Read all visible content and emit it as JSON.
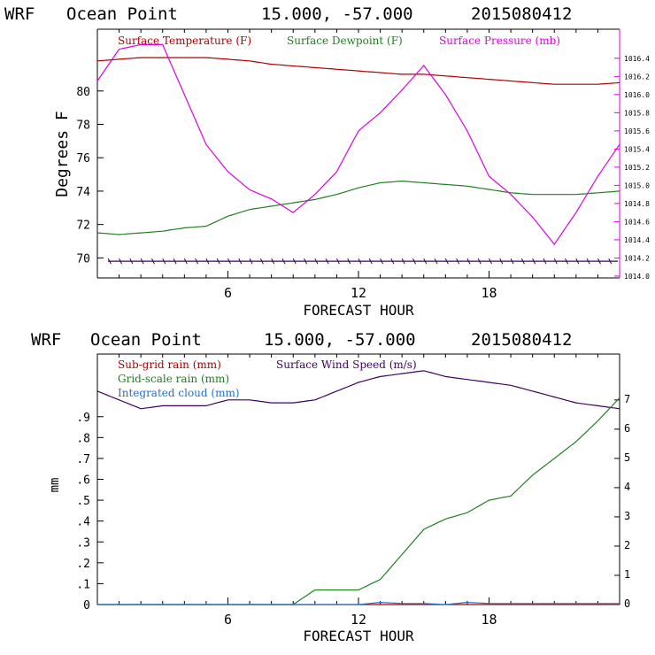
{
  "charts": [
    {
      "title": {
        "model": "WRF",
        "location": "Ocean Point",
        "coords": "15.000, -57.000",
        "run": "2015080412"
      },
      "xlabel": "FORECAST HOUR",
      "ylabel": "Degrees F",
      "legend": [
        {
          "label": "Surface Temperature (F)",
          "color": "#b00000"
        },
        {
          "label": "Surface Dewpoint (F)",
          "color": "#208020"
        },
        {
          "label": "Surface Pressure (mb)",
          "color": "#e000e0"
        }
      ],
      "xticks": [
        {
          "value": 6,
          "label": "6"
        },
        {
          "value": 12,
          "label": "12"
        },
        {
          "value": 18,
          "label": "18"
        }
      ],
      "yticks_left": [
        {
          "value": 70,
          "label": "70"
        },
        {
          "value": 72,
          "label": "72"
        },
        {
          "value": 74,
          "label": "74"
        },
        {
          "value": 76,
          "label": "76"
        },
        {
          "value": 78,
          "label": "78"
        },
        {
          "value": 80,
          "label": "80"
        }
      ],
      "yticks_right": [
        {
          "value": 1014.0,
          "label": "1014.0"
        },
        {
          "value": 1014.2,
          "label": "1014.2"
        },
        {
          "value": 1014.4,
          "label": "1014.4"
        },
        {
          "value": 1014.6,
          "label": "1014.6"
        },
        {
          "value": 1014.8,
          "label": "1014.8"
        },
        {
          "value": 1015.0,
          "label": "1015.0"
        },
        {
          "value": 1015.2,
          "label": "1015.2"
        },
        {
          "value": 1015.4,
          "label": "1015.4"
        },
        {
          "value": 1015.6,
          "label": "1015.6"
        },
        {
          "value": 1015.8,
          "label": "1015.8"
        },
        {
          "value": 1016.0,
          "label": "1016.0"
        },
        {
          "value": 1016.2,
          "label": "1016.2"
        },
        {
          "value": 1016.4,
          "label": "1016.4"
        }
      ]
    },
    {
      "title": {
        "model": "WRF",
        "location": "Ocean Point",
        "coords": "15.000, -57.000",
        "run": "2015080412"
      },
      "xlabel": "FORECAST HOUR",
      "ylabel": "mm",
      "legend": [
        {
          "label": "Sub-grid rain (mm)",
          "color": "#b00000"
        },
        {
          "label": "Surface Wind Speed (m/s)",
          "color": "#400060"
        },
        {
          "label": "Grid-scale rain (mm)",
          "color": "#208020"
        },
        {
          "label": "Integrated cloud (mm)",
          "color": "#2070d0"
        }
      ],
      "xticks": [
        {
          "value": 6,
          "label": "6"
        },
        {
          "value": 12,
          "label": "12"
        },
        {
          "value": 18,
          "label": "18"
        }
      ],
      "yticks_left": [
        {
          "value": 0,
          "label": "0"
        },
        {
          "value": 0.1,
          "label": ".1"
        },
        {
          "value": 0.2,
          "label": ".2"
        },
        {
          "value": 0.3,
          "label": ".3"
        },
        {
          "value": 0.4,
          "label": ".4"
        },
        {
          "value": 0.5,
          "label": ".5"
        },
        {
          "value": 0.6,
          "label": ".6"
        },
        {
          "value": 0.7,
          "label": ".7"
        },
        {
          "value": 0.8,
          "label": ".8"
        },
        {
          "value": 0.9,
          "label": ".9"
        }
      ],
      "yticks_right": [
        {
          "value": 0,
          "label": "0"
        },
        {
          "value": 1,
          "label": "1"
        },
        {
          "value": 2,
          "label": "2"
        },
        {
          "value": 3,
          "label": "3"
        },
        {
          "value": 4,
          "label": "4"
        },
        {
          "value": 5,
          "label": "5"
        },
        {
          "value": 6,
          "label": "6"
        },
        {
          "value": 7,
          "label": "7"
        }
      ]
    }
  ],
  "chart_data": [
    {
      "type": "line",
      "title": "WRF Ocean Point 15.000, -57.000 2015080412",
      "xlabel": "FORECAST HOUR",
      "ylabel": "Degrees F",
      "xlim": [
        0,
        24
      ],
      "ylim": [
        68.8,
        83.7
      ],
      "ylim_right": [
        1013.98,
        1016.72
      ],
      "x": [
        0,
        1,
        2,
        3,
        4,
        5,
        6,
        7,
        8,
        9,
        10,
        11,
        12,
        13,
        14,
        15,
        16,
        17,
        18,
        19,
        20,
        21,
        22,
        23,
        24
      ],
      "series": [
        {
          "name": "Surface Temperature (F)",
          "axis": "left",
          "color": "#b00000",
          "values": [
            81.8,
            81.9,
            82.0,
            82.0,
            82.0,
            82.0,
            81.9,
            81.8,
            81.6,
            81.5,
            81.4,
            81.3,
            81.2,
            81.1,
            81.0,
            81.0,
            80.9,
            80.8,
            80.7,
            80.6,
            80.5,
            80.4,
            80.4,
            80.4,
            80.5
          ]
        },
        {
          "name": "Surface Dewpoint (F)",
          "axis": "left",
          "color": "#208020",
          "values": [
            71.5,
            71.4,
            71.5,
            71.6,
            71.8,
            71.9,
            72.5,
            72.9,
            73.1,
            73.3,
            73.5,
            73.8,
            74.2,
            74.5,
            74.6,
            74.5,
            74.4,
            74.3,
            74.1,
            73.9,
            73.8,
            73.8,
            73.8,
            73.9,
            74.0
          ]
        },
        {
          "name": "Surface Pressure (mb)",
          "axis": "right",
          "color": "#e000e0",
          "values": [
            1016.15,
            1016.5,
            1016.55,
            1016.55,
            1016.0,
            1015.45,
            1015.15,
            1014.95,
            1014.85,
            1014.7,
            1014.9,
            1015.15,
            1015.6,
            1015.8,
            1016.05,
            1016.32,
            1016.0,
            1015.6,
            1015.1,
            1014.9,
            1014.65,
            1014.35,
            1014.7,
            1015.1,
            1015.45
          ]
        }
      ],
      "dotted_line": {
        "name": "wind barbs level",
        "axis": "left",
        "value": 69.8
      }
    },
    {
      "type": "line",
      "title": "WRF Ocean Point 15.000, -57.000 2015080412",
      "xlabel": "FORECAST HOUR",
      "ylabel": "mm",
      "xlim": [
        0,
        24
      ],
      "ylim": [
        0,
        1.2
      ],
      "ylim_right": [
        0,
        8.57
      ],
      "x": [
        0,
        1,
        2,
        3,
        4,
        5,
        6,
        7,
        8,
        9,
        10,
        11,
        12,
        13,
        14,
        15,
        16,
        17,
        18,
        19,
        20,
        21,
        22,
        23,
        24
      ],
      "series": [
        {
          "name": "Sub-grid rain (mm)",
          "axis": "left",
          "color": "#b00000",
          "values": [
            0,
            0,
            0,
            0,
            0,
            0,
            0,
            0,
            0,
            0,
            0,
            0,
            0,
            0,
            0,
            0,
            0,
            0,
            0,
            0,
            0,
            0,
            0,
            0,
            0
          ]
        },
        {
          "name": "Surface Wind Speed (m/s)",
          "axis": "right",
          "color": "#400060",
          "values": [
            7.3,
            7.0,
            6.7,
            6.8,
            6.8,
            6.8,
            7.0,
            7.0,
            6.9,
            6.9,
            7.0,
            7.3,
            7.6,
            7.8,
            7.9,
            8.0,
            7.8,
            7.7,
            7.6,
            7.5,
            7.3,
            7.1,
            6.9,
            6.8,
            6.7
          ]
        },
        {
          "name": "Grid-scale rain (mm)",
          "axis": "left",
          "color": "#208020",
          "values": [
            0,
            0,
            0,
            0,
            0,
            0,
            0,
            0,
            0,
            0,
            0.07,
            0.07,
            0.07,
            0.12,
            0.24,
            0.36,
            0.41,
            0.44,
            0.5,
            0.52,
            0.62,
            0.7,
            0.78,
            0.88,
            0.99
          ]
        },
        {
          "name": "Integrated cloud (mm)",
          "axis": "left",
          "color": "#2070d0",
          "values": [
            0,
            0,
            0,
            0,
            0,
            0,
            0,
            0,
            0,
            0,
            0,
            0,
            0,
            0.01,
            0.005,
            0.005,
            0,
            0.01,
            0.005,
            0.005,
            0.005,
            0.005,
            0.005,
            0.005,
            0.005
          ]
        }
      ]
    }
  ]
}
